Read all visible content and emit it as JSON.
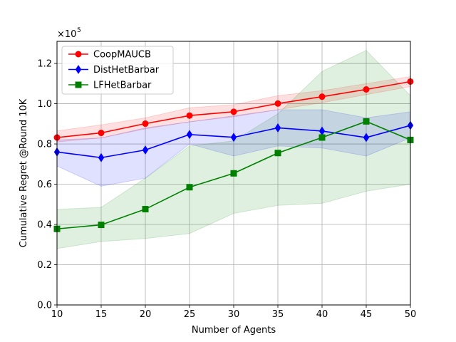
{
  "chart_data": {
    "type": "line",
    "xlabel": "Number of Agents",
    "ylabel": "Cumulative Regret @Round 10K",
    "y_multiplier_label": "×10",
    "y_multiplier_exponent": "5",
    "x": [
      10,
      15,
      20,
      25,
      30,
      35,
      40,
      45,
      50
    ],
    "xlim": [
      10,
      50
    ],
    "ylim": [
      0.0,
      1.31
    ],
    "x_ticks": [
      10,
      15,
      20,
      25,
      30,
      35,
      40,
      45,
      50
    ],
    "x_tick_labels": [
      "10",
      "15",
      "20",
      "25",
      "30",
      "35",
      "40",
      "45",
      "50"
    ],
    "y_ticks": [
      0.0,
      0.2,
      0.4,
      0.6,
      0.8,
      1.0,
      1.2
    ],
    "y_tick_labels": [
      "0.0",
      "0.2",
      "0.4",
      "0.6",
      "0.8",
      "1.0",
      "1.2"
    ],
    "grid": true,
    "legend_position": "top-left",
    "series": [
      {
        "name": "CoopMAUCB",
        "color": "#ff0000",
        "marker": "circle",
        "values": [
          0.832,
          0.855,
          0.901,
          0.941,
          0.96,
          1.001,
          1.035,
          1.071,
          1.11
        ],
        "band_low": [
          0.81,
          0.83,
          0.875,
          0.91,
          0.935,
          0.97,
          1.005,
          1.045,
          1.085
        ],
        "band_high": [
          0.865,
          0.895,
          0.93,
          0.98,
          0.995,
          1.04,
          1.065,
          1.1,
          1.135
        ]
      },
      {
        "name": "DistHetBarbar",
        "color": "#0000ff",
        "marker": "diamond",
        "values": [
          0.76,
          0.732,
          0.77,
          0.847,
          0.833,
          0.88,
          0.864,
          0.832,
          0.892
        ],
        "band_low": [
          0.69,
          0.59,
          0.63,
          0.8,
          0.74,
          0.79,
          0.78,
          0.74,
          0.83
        ],
        "band_high": [
          0.82,
          0.83,
          0.88,
          0.91,
          0.94,
          0.97,
          0.97,
          0.93,
          0.96
        ]
      },
      {
        "name": "LFHetBarbar",
        "color": "#008000",
        "marker": "square",
        "values": [
          0.378,
          0.398,
          0.476,
          0.585,
          0.654,
          0.755,
          0.832,
          0.912,
          0.82
        ],
        "band_low": [
          0.28,
          0.315,
          0.33,
          0.355,
          0.455,
          0.495,
          0.505,
          0.565,
          0.6
        ],
        "band_high": [
          0.475,
          0.485,
          0.63,
          0.79,
          0.815,
          0.95,
          1.16,
          1.265,
          1.04
        ]
      }
    ]
  }
}
